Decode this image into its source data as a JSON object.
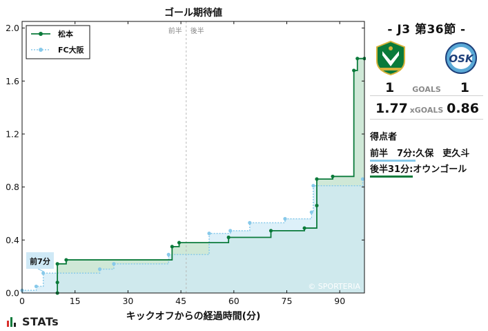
{
  "colors": {
    "home": "#0a7a3a",
    "home_fill": "#bfe0c9",
    "away": "#87c9ea",
    "away_fill": "#cfe9f6"
  },
  "chart_data": {
    "type": "line",
    "title": "ゴール期待値",
    "xlabel": "キックオフからの経過時間(分)",
    "ylabel": "",
    "xlim": [
      0,
      97
    ],
    "ylim": [
      0,
      2.05
    ],
    "x_ticks": [
      0,
      15,
      30,
      45,
      60,
      75,
      90
    ],
    "y_ticks": [
      0.0,
      0.4,
      0.8,
      1.2,
      1.6,
      2.0
    ],
    "y_tick_labels": [
      "0.0",
      "0.4",
      "0.8",
      "1.2",
      "1.6",
      "2.0"
    ],
    "legend_position": "top-left",
    "halftime": {
      "x": 46.5,
      "label_first": "前半",
      "label_second": "後半"
    },
    "series": [
      {
        "name": "松本",
        "style": "solid step",
        "points": [
          [
            10,
            0.0
          ],
          [
            10,
            0.08
          ],
          [
            10,
            0.22
          ],
          [
            12.5,
            0.25
          ],
          [
            42.5,
            0.35
          ],
          [
            44.5,
            0.38
          ],
          [
            58.5,
            0.42
          ],
          [
            70.5,
            0.47
          ],
          [
            80,
            0.49
          ],
          [
            83.5,
            0.66
          ],
          [
            83.5,
            0.86
          ],
          [
            88,
            0.88
          ],
          [
            94,
            1.68
          ],
          [
            95,
            1.77
          ],
          [
            97,
            1.77
          ]
        ]
      },
      {
        "name": "FC大阪",
        "style": "dotted step",
        "points": [
          [
            0,
            0.02
          ],
          [
            4,
            0.05
          ],
          [
            6,
            0.15
          ],
          [
            22,
            0.18
          ],
          [
            26,
            0.22
          ],
          [
            41.5,
            0.29
          ],
          [
            53,
            0.45
          ],
          [
            59,
            0.47
          ],
          [
            64.5,
            0.53
          ],
          [
            74.5,
            0.56
          ],
          [
            82,
            0.61
          ],
          [
            82.5,
            0.81
          ],
          [
            96.5,
            0.86
          ]
        ]
      }
    ],
    "annotation": {
      "label": "前7分",
      "x": 7,
      "series": "FC大阪"
    },
    "watermark": "© SPORTERIA"
  },
  "match": {
    "title": "-  J3 第36節  -",
    "home_team": "松本",
    "away_team": "FC大阪",
    "home_emblem": "matsumoto-yamaga-emblem",
    "away_emblem": "fc-osaka-emblem",
    "goals_label": "GOALS",
    "home_goals": "1",
    "away_goals": "1",
    "xgoals_label": "xGOALS",
    "home_xg": "1.77",
    "away_xg": "0.86"
  },
  "scorers": {
    "title": "得点者",
    "items": [
      {
        "time": "前半　7分:",
        "player": "久保　吏久斗"
      },
      {
        "time": "後半31分:",
        "player": "オウンゴール"
      }
    ]
  },
  "brand": {
    "name": "STATs"
  }
}
